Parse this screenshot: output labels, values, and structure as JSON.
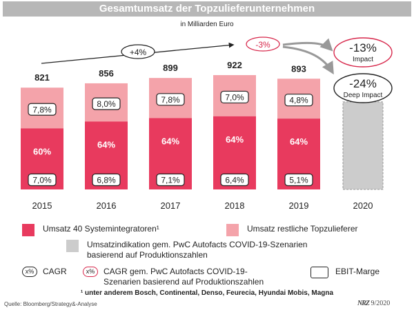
{
  "title": "Gesamtumsatz der Topzulieferunternehmen",
  "subtitle": "in Milliarden Euro",
  "colors": {
    "systemintegratoren": "#e83a5e",
    "restliche": "#f4a3aa",
    "indikation": "#cccccc",
    "cagr_red": "#d7264a"
  },
  "chart_data": {
    "type": "bar",
    "stacked": true,
    "categories": [
      "2015",
      "2016",
      "2017",
      "2018",
      "2019",
      "2020"
    ],
    "totals": [
      821,
      856,
      899,
      922,
      893,
      null
    ],
    "series": [
      {
        "name": "Umsatz 40 Systemintegratoren",
        "share_labels": [
          "60%",
          "64%",
          "64%",
          "64%",
          "64%",
          null
        ],
        "shares": [
          0.6,
          0.64,
          0.64,
          0.64,
          0.64,
          null
        ]
      },
      {
        "name": "Umsatz restliche Topzulieferer",
        "shares": [
          0.4,
          0.36,
          0.36,
          0.36,
          0.36,
          null
        ]
      },
      {
        "name": "Umsatzindikation gem. PwC Autofacts COVID-19-Szenarien basierend auf Produktionszahlen",
        "values": [
          null,
          null,
          null,
          null,
          null,
          706
        ]
      }
    ],
    "ebit_marge_restliche": [
      "7,8%",
      "8,0%",
      "7,8%",
      "7,0%",
      "4,8%",
      null
    ],
    "ebit_marge_systemintegratoren": [
      "7,0%",
      "6,8%",
      "7,1%",
      "6,4%",
      "5,1%",
      null
    ],
    "cagr": {
      "label": "+4%",
      "from": "2015",
      "to": "2018"
    },
    "cagr_covid": {
      "label": "-3%",
      "from": "2018",
      "to": "2019"
    },
    "scenarios": [
      {
        "label": "-13%",
        "name": "Impact"
      },
      {
        "label": "-24%",
        "name": "Deep Impact"
      }
    ],
    "ylim": [
      0,
      1000
    ]
  },
  "legend": {
    "systemintegratoren": "Umsatz 40 Systemintegratoren¹",
    "restliche": "Umsatz restliche Topzulieferer",
    "indikation_line1": "Umsatzindikation gem. PwC Autofacts COVID-19-Szenarien",
    "indikation_line2": "basierend auf Produktionszahlen",
    "cagr_sample": "x%",
    "cagr": "CAGR",
    "cagr_covid_line1": "CAGR gem. PwC Autofacts COVID-19-",
    "cagr_covid_line2": "Szenarien basierend auf Produktionszahlen",
    "ebit": "EBIT-Marge"
  },
  "footnote": "¹ unter anderem Bosch, Continental, Denso, Feurecia, Hyundai Mobis, Magna",
  "source": "Quelle: Bloomberg/Strategy&-Analyse",
  "brand": {
    "logo": "NRZ",
    "date": "9/2020"
  }
}
